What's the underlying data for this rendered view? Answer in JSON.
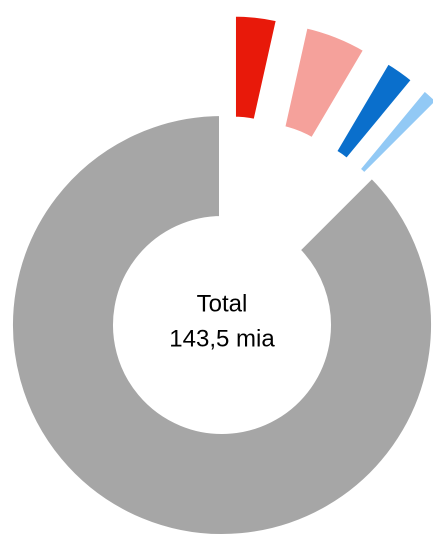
{
  "chart_data": {
    "type": "donut",
    "values": [
      3.5,
      5,
      2.5,
      1.5,
      87.5
    ],
    "colors": [
      "#e8190a",
      "#f5a19b",
      "#0a6fcc",
      "#92c9f5",
      "#a6a6a6"
    ],
    "exploded": [
      true,
      true,
      true,
      true,
      false
    ],
    "center_text": [
      "Total",
      "143,5 mia"
    ]
  }
}
